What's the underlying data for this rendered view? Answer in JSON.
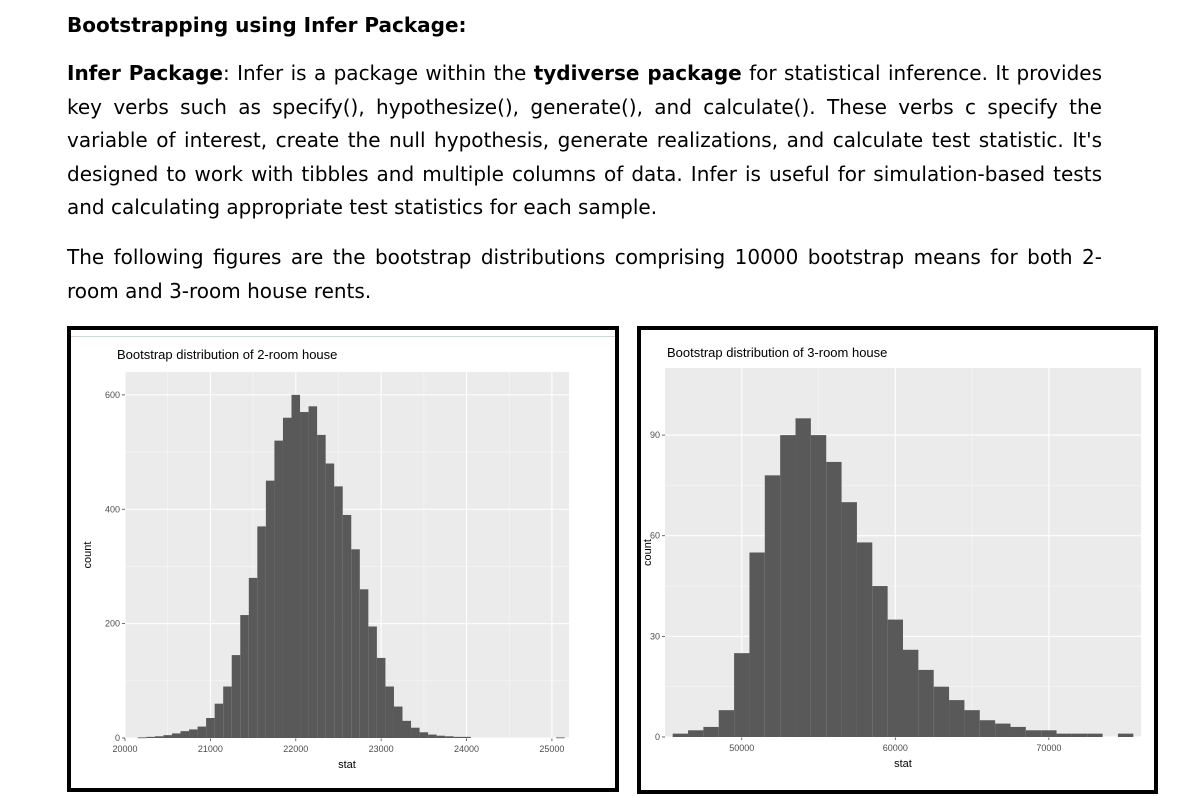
{
  "document": {
    "heading": "Bootstrapping using Infer Package:",
    "para1": {
      "lead": "Infer Package",
      "text1": ": Infer is a package within the ",
      "bold2": "tydiverse package",
      "text2": " for statistical inference. It provides key verbs such as specify(), hypothesize(), generate(), and calculate(). These verbs c specify the variable of interest, create the null hypothesis, generate realizations, and calculate test statistic. It's designed to work with tibbles and multiple columns of data. Infer is useful for simulation-based tests and calculating appropriate test statistics for each sample."
    },
    "para2": "The following figures are the bootstrap distributions comprising 10000 bootstrap means for both 2-room and 3-room house rents."
  },
  "chart_data": [
    {
      "type": "bar",
      "title": "Bootstrap distribution of 2-room house",
      "xlabel": "stat",
      "ylabel": "count",
      "xlim": [
        20000,
        25200
      ],
      "ylim": [
        0,
        640
      ],
      "xticks": [
        "20000",
        "21000",
        "22000",
        "23000",
        "24000",
        "25000"
      ],
      "yticks": [
        "0",
        "200",
        "400",
        "600"
      ],
      "x": [
        20200,
        20300,
        20400,
        20500,
        20600,
        20700,
        20800,
        20900,
        21000,
        21100,
        21200,
        21300,
        21400,
        21500,
        21600,
        21700,
        21800,
        21900,
        22000,
        22100,
        22200,
        22300,
        22400,
        22500,
        22600,
        22700,
        22800,
        22900,
        23000,
        23100,
        23200,
        23300,
        23400,
        23500,
        23600,
        23700,
        23800,
        23900,
        24000,
        25100
      ],
      "values": [
        1,
        2,
        3,
        5,
        8,
        12,
        15,
        20,
        35,
        60,
        90,
        145,
        215,
        280,
        370,
        450,
        520,
        560,
        600,
        570,
        580,
        530,
        480,
        440,
        390,
        330,
        260,
        195,
        140,
        90,
        55,
        30,
        18,
        10,
        6,
        4,
        3,
        2,
        2,
        1
      ]
    },
    {
      "type": "bar",
      "title": "Bootstrap distribution of 3-room house",
      "xlabel": "stat",
      "ylabel": "count",
      "xlim": [
        45000,
        76000
      ],
      "ylim": [
        0,
        110
      ],
      "xticks": [
        "50000",
        "60000",
        "70000"
      ],
      "yticks": [
        "0",
        "30",
        "60",
        "90"
      ],
      "x": [
        46000,
        47000,
        48000,
        49000,
        50000,
        51000,
        52000,
        53000,
        54000,
        55000,
        56000,
        57000,
        58000,
        59000,
        60000,
        61000,
        62000,
        63000,
        64000,
        65000,
        66000,
        67000,
        68000,
        69000,
        70000,
        71000,
        72000,
        73000,
        74000,
        75000
      ],
      "values": [
        1,
        2,
        3,
        8,
        25,
        55,
        78,
        90,
        95,
        90,
        82,
        70,
        58,
        45,
        35,
        26,
        20,
        15,
        11,
        8,
        5,
        4,
        3,
        2,
        2,
        1,
        1,
        1,
        0,
        1
      ]
    }
  ]
}
